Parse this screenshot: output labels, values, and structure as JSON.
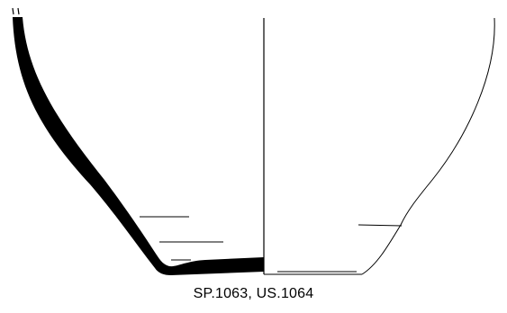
{
  "caption": "SP.1063, US.1064",
  "colors": {
    "ink": "#000000",
    "paper": "#ffffff"
  }
}
